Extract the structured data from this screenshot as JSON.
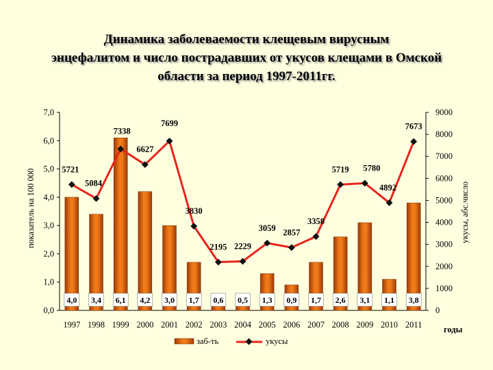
{
  "title_lines": [
    "Динамика заболеваемости клещевым вирусным",
    "энцефалитом и число пострадавших от укусов клещами в Омской",
    "области за период 1997-2011гг."
  ],
  "chart_data": {
    "type": "bar",
    "categories": [
      "1997",
      "1998",
      "1999",
      "2000",
      "2001",
      "2002",
      "2003",
      "2004",
      "2005",
      "2006",
      "2007",
      "2008",
      "2009",
      "2010",
      "2011"
    ],
    "series": [
      {
        "name": "заб-ть",
        "type": "bar",
        "axis": "left",
        "color": "#D4600A",
        "values": [
          4.0,
          3.4,
          6.1,
          4.2,
          3.0,
          1.7,
          0.6,
          0.5,
          1.3,
          0.9,
          1.7,
          2.6,
          3.1,
          1.1,
          3.8
        ],
        "labels": [
          "4,0",
          "3,4",
          "6,1",
          "4,2",
          "3,0",
          "1,7",
          "0,6",
          "0,5",
          "1,3",
          "0,9",
          "1,7",
          "2,6",
          "3,1",
          "1,1",
          "3,8"
        ]
      },
      {
        "name": "укусы",
        "type": "line",
        "axis": "right",
        "color": "#E8231C",
        "values": [
          5721,
          5084,
          7338,
          6627,
          7699,
          3830,
          2195,
          2229,
          3059,
          2857,
          3358,
          5719,
          5780,
          4892,
          7673
        ],
        "labels": [
          "5721",
          "5084",
          "7338",
          "6627",
          "7699",
          "3830",
          "2195",
          "2229",
          "3059",
          "2857",
          "3358",
          "5719",
          "5780",
          "4892",
          "7673"
        ]
      }
    ],
    "ylabel": "показатель на 100 000",
    "y2label": "укусы, абс.число",
    "xlabel": "годы",
    "ylim": [
      0,
      7
    ],
    "y2lim": [
      0,
      9000
    ],
    "yticks": [
      "0,0",
      "1,0",
      "2,0",
      "3,0",
      "4,0",
      "5,0",
      "6,0",
      "7,0"
    ],
    "y2ticks": [
      "0",
      "1000",
      "2000",
      "3000",
      "4000",
      "5000",
      "6000",
      "7000",
      "8000",
      "9000"
    ],
    "legend": {
      "position": "bottom",
      "items": [
        "заб-ть",
        "укусы"
      ]
    }
  }
}
